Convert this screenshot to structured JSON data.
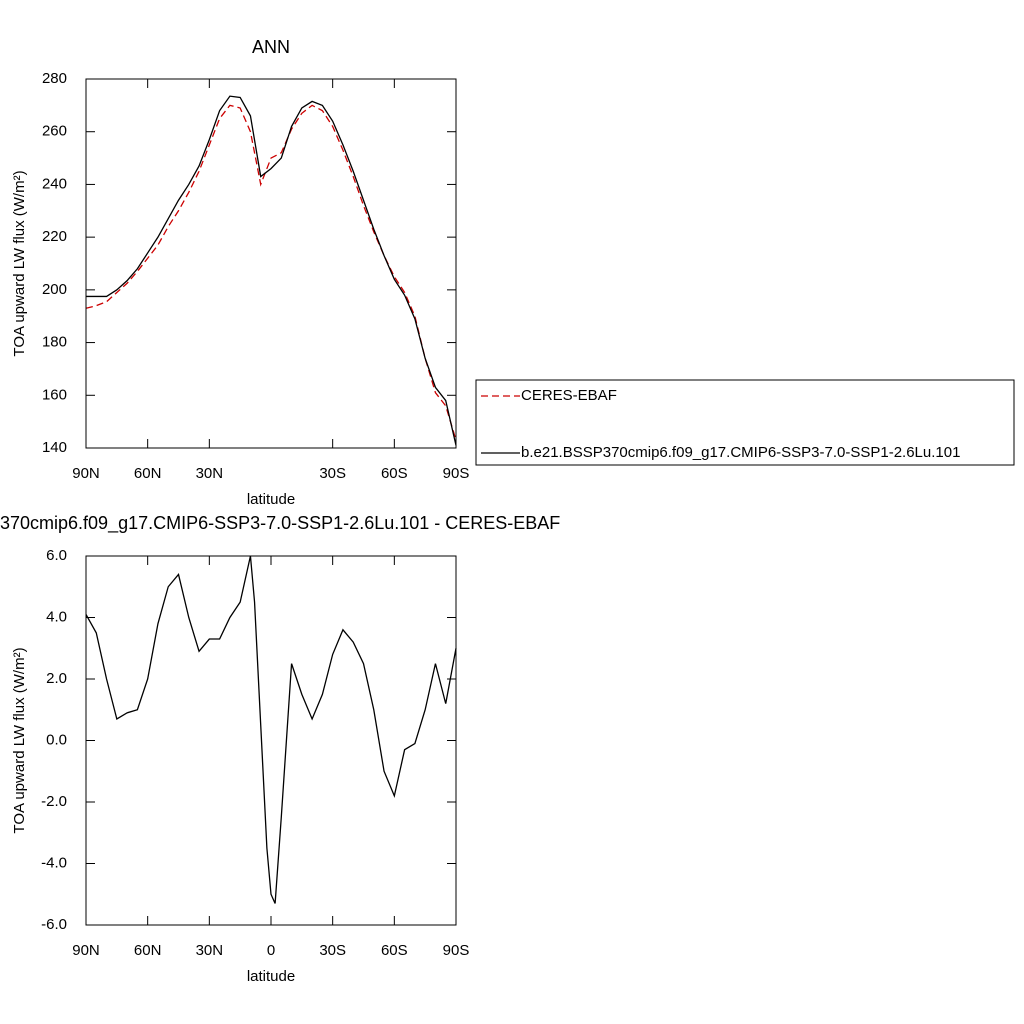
{
  "chart_data": [
    {
      "type": "line",
      "title": "ANN",
      "xlabel": "latitude",
      "ylabel": "TOA upward LW flux (W/m²)",
      "x": [
        90,
        85,
        80,
        75,
        70,
        65,
        60,
        55,
        50,
        45,
        40,
        35,
        30,
        25,
        20,
        15,
        10,
        5,
        0,
        -5,
        -10,
        -15,
        -20,
        -25,
        -30,
        -35,
        -40,
        -45,
        -50,
        -55,
        -60,
        -65,
        -70,
        -75,
        -80,
        -85,
        -90
      ],
      "xlim": [
        90,
        -90
      ],
      "xticks": [
        {
          "value": 90,
          "label": "90N"
        },
        {
          "value": 60,
          "label": "60N"
        },
        {
          "value": 30,
          "label": "30N"
        },
        {
          "value": -30,
          "label": "30S"
        },
        {
          "value": -60,
          "label": "60S"
        },
        {
          "value": -90,
          "label": "90S"
        }
      ],
      "ylim": [
        140,
        280
      ],
      "yticks": [
        140,
        160,
        180,
        200,
        220,
        240,
        260,
        280
      ],
      "legend": "right",
      "series": [
        {
          "name": "CERES-EBAF",
          "color": "#cc0000",
          "dashed": true,
          "values": [
            193,
            194,
            195.5,
            199,
            202.5,
            207,
            212,
            217,
            224,
            230,
            237,
            245,
            255,
            265,
            270,
            269,
            260,
            240,
            250,
            252,
            261,
            267,
            270,
            268,
            262,
            253,
            243,
            232,
            222,
            213,
            205,
            199,
            190,
            174,
            161,
            156,
            143
          ]
        },
        {
          "name": "b.e21.BSSP370cmip6.f09_g17.CMIP6-SSP3-7.0-SSP1-2.6Lu.101",
          "color": "#000000",
          "dashed": false,
          "values": [
            197.5,
            197.5,
            197.5,
            200,
            203.5,
            208,
            214,
            220,
            227,
            234,
            240,
            247,
            257,
            268,
            273.5,
            273,
            266,
            243,
            246,
            250,
            262,
            269,
            271.5,
            270,
            264,
            255,
            245,
            234,
            223,
            213,
            204,
            198,
            189,
            174,
            163,
            158,
            141
          ]
        }
      ]
    },
    {
      "type": "line",
      "title": "370cmip6.f09_g17.CMIP6-SSP3-7.0-SSP1-2.6Lu.101 - CERES-EBAF",
      "xlabel": "latitude",
      "ylabel": "TOA upward LW flux (W/m²)",
      "x": [
        90,
        85,
        80,
        75,
        70,
        65,
        60,
        55,
        50,
        45,
        40,
        35,
        30,
        25,
        20,
        15,
        10,
        8,
        5,
        2,
        0,
        -2,
        -5,
        -10,
        -15,
        -20,
        -25,
        -30,
        -35,
        -40,
        -45,
        -50,
        -55,
        -60,
        -65,
        -70,
        -75,
        -80,
        -85,
        -90
      ],
      "xlim": [
        90,
        -90
      ],
      "xticks": [
        {
          "value": 90,
          "label": "90N"
        },
        {
          "value": 60,
          "label": "60N"
        },
        {
          "value": 30,
          "label": "30N"
        },
        0,
        {
          "value": -30,
          "label": "30S"
        },
        {
          "value": -60,
          "label": "60S"
        },
        {
          "value": -90,
          "label": "90S"
        }
      ],
      "ylim": [
        -6,
        6
      ],
      "yticks": [
        {
          "value": -6,
          "label": "-6.0"
        },
        {
          "value": -4,
          "label": "-4.0"
        },
        {
          "value": -2,
          "label": "-2.0"
        },
        {
          "value": 0,
          "label": "0.0"
        },
        {
          "value": 2,
          "label": "2.0"
        },
        {
          "value": 4,
          "label": "4.0"
        },
        {
          "value": 6,
          "label": "6.0"
        }
      ],
      "color": "#000000",
      "values": [
        4.1,
        3.5,
        2.0,
        0.7,
        0.9,
        1.0,
        2.0,
        3.8,
        5.0,
        5.4,
        4.0,
        2.9,
        3.3,
        3.3,
        4.0,
        4.5,
        6.0,
        4.5,
        0.5,
        -3.5,
        -5.0,
        -5.3,
        -2.5,
        2.5,
        1.5,
        0.7,
        1.5,
        2.8,
        3.6,
        3.2,
        2.5,
        1.0,
        -1.0,
        -1.8,
        -0.3,
        -0.1,
        1.0,
        2.5,
        1.2,
        3.0
      ]
    }
  ]
}
